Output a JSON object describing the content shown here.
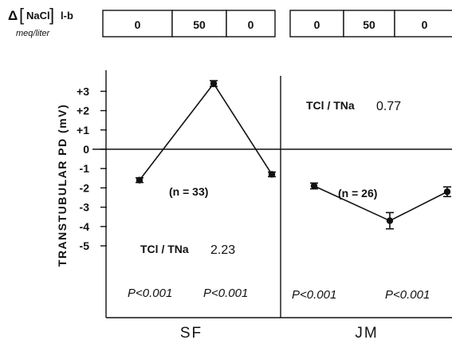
{
  "header": {
    "delta": "Δ",
    "bracket_open": "[",
    "species": "NaCl",
    "bracket_close": "]",
    "subscript": "l-b",
    "units": "meq/liter"
  },
  "chart_data": {
    "type": "line",
    "ylabel": "TRANSTUBULAR PD (mV)",
    "ylim": [
      -6.2,
      3.6
    ],
    "yticks": [
      {
        "value": 3,
        "label": "+3"
      },
      {
        "value": 2,
        "label": "+2"
      },
      {
        "value": 1,
        "label": "+1"
      },
      {
        "value": 0,
        "label": "0"
      },
      {
        "value": -1,
        "label": "-1"
      },
      {
        "value": -2,
        "label": "-2"
      },
      {
        "value": -3,
        "label": "-3"
      },
      {
        "value": -4,
        "label": "-4"
      },
      {
        "value": -5,
        "label": "-5"
      }
    ],
    "groups": [
      {
        "name": "SF",
        "conditions": [
          "0",
          "50",
          "0"
        ],
        "values": [
          -1.6,
          3.4,
          -1.3
        ],
        "errors": [
          0.12,
          0.15,
          0.12
        ],
        "n_label": "(n = 33)",
        "ratio_prefix": "TCl / TNa",
        "ratio_value": "2.23",
        "p_values": [
          "P<0.001",
          "P<0.001"
        ]
      },
      {
        "name": "JM",
        "conditions": [
          "0",
          "50",
          "0"
        ],
        "values": [
          -1.9,
          -3.7,
          -2.2
        ],
        "errors": [
          0.15,
          0.42,
          0.25
        ],
        "n_label": "(n = 26)",
        "ratio_prefix": "TCl / TNa",
        "ratio_value": "0.77",
        "p_values": [
          "P<0.001",
          "P<0.001"
        ]
      }
    ]
  }
}
